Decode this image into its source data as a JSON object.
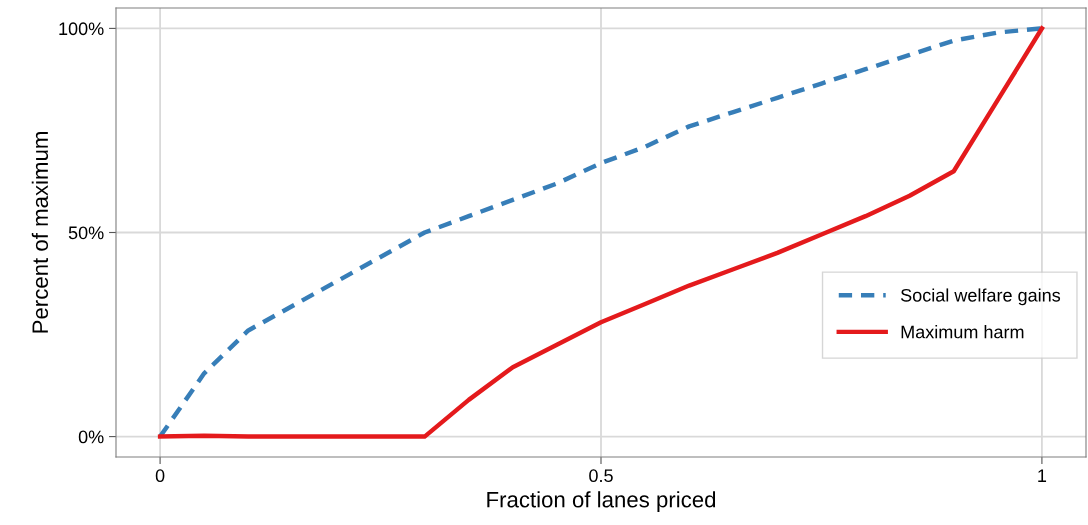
{
  "chart_data": {
    "type": "line",
    "xlabel": "Fraction of lanes priced",
    "ylabel": "Percent of maximum",
    "x": [
      0,
      0.05,
      0.1,
      0.15,
      0.2,
      0.25,
      0.3,
      0.35,
      0.4,
      0.45,
      0.5,
      0.55,
      0.6,
      0.65,
      0.7,
      0.75,
      0.8,
      0.85,
      0.9,
      0.95,
      1
    ],
    "series": [
      {
        "name": "Social welfare gains",
        "color": "#377eb8",
        "line_style": "dashed",
        "values": [
          0,
          15.5,
          26,
          32,
          38,
          44,
          50,
          54,
          58,
          62,
          67,
          71,
          76,
          79.5,
          83,
          86.5,
          90,
          93.5,
          97,
          99,
          100
        ]
      },
      {
        "name": "Maximum harm",
        "color": "#e41a1c",
        "line_style": "solid",
        "values": [
          0,
          0.2,
          0,
          0,
          0,
          0,
          0,
          9,
          17,
          22.5,
          28,
          32.5,
          37,
          41,
          45,
          49.5,
          54,
          59,
          65,
          82.5,
          100
        ]
      }
    ],
    "xlim": [
      -0.05,
      1.05
    ],
    "xticks": [
      0,
      0.5,
      1
    ],
    "ylim": [
      -5,
      105
    ],
    "yticks": [
      {
        "value": 0,
        "label": "0%"
      },
      {
        "value": 50,
        "label": "50%"
      },
      {
        "value": 100,
        "label": "100%"
      }
    ],
    "grid": true,
    "legend": "bottom right",
    "marker": "none"
  }
}
